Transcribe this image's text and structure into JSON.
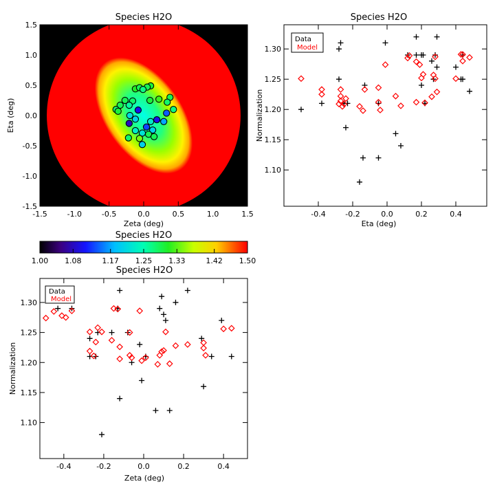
{
  "colorbar": {
    "title": "Species H2O",
    "range": [
      1.0,
      1.5
    ],
    "tick_labels": [
      "1.00",
      "1.08",
      "1.17",
      "1.25",
      "1.33",
      "1.42",
      "1.50"
    ],
    "tick_values": [
      1.0,
      1.08,
      1.17,
      1.25,
      1.33,
      1.42,
      1.5
    ]
  },
  "chart_data": [
    {
      "type": "heatmap",
      "title": "Species H2O",
      "xlabel": "Zeta (deg)",
      "ylabel": "Eta (deg)",
      "xlim": [
        -1.5,
        1.5
      ],
      "ylim": [
        -1.5,
        1.5
      ],
      "x_ticks": [
        -1.5,
        -1.0,
        -0.5,
        0.0,
        0.5,
        1.0,
        1.5
      ],
      "x_tick_labels": [
        "-1.5",
        "-1.0",
        "-0.5",
        "0.0",
        "0.5",
        "1.0",
        "1.5"
      ],
      "y_ticks": [
        -1.5,
        -1.0,
        -0.5,
        0.0,
        0.5,
        1.0,
        1.5
      ],
      "y_tick_labels": [
        "-1.5",
        "-1.0",
        "-0.5",
        "0.0",
        "0.5",
        "1.0",
        "1.5"
      ],
      "model": {
        "center": [
          0.0,
          0.0
        ],
        "semi_major": 0.95,
        "semi_minor": 0.55,
        "angle_deg": 55,
        "min": 1.2,
        "max": 1.5
      },
      "disk_radius": 1.4,
      "points": [
        {
          "x": 0.1,
          "y": 0.49,
          "v": 1.3
        },
        {
          "x": 0.05,
          "y": 0.47,
          "v": 1.29
        },
        {
          "x": -0.12,
          "y": 0.44,
          "v": 1.31
        },
        {
          "x": -0.06,
          "y": 0.46,
          "v": 1.29
        },
        {
          "x": -0.01,
          "y": 0.43,
          "v": 1.27
        },
        {
          "x": 0.38,
          "y": 0.3,
          "v": 1.29
        },
        {
          "x": 0.22,
          "y": 0.27,
          "v": 1.32
        },
        {
          "x": 0.34,
          "y": 0.22,
          "v": 1.28
        },
        {
          "x": -0.27,
          "y": 0.25,
          "v": 1.29
        },
        {
          "x": -0.16,
          "y": 0.24,
          "v": 1.28
        },
        {
          "x": 0.09,
          "y": 0.25,
          "v": 1.3
        },
        {
          "x": -0.34,
          "y": 0.17,
          "v": 1.29
        },
        {
          "x": -0.4,
          "y": 0.1,
          "v": 1.28
        },
        {
          "x": -0.21,
          "y": 0.17,
          "v": 1.26
        },
        {
          "x": -0.08,
          "y": 0.09,
          "v": 1.1
        },
        {
          "x": 0.43,
          "y": 0.1,
          "v": 1.27
        },
        {
          "x": -0.37,
          "y": 0.07,
          "v": 1.3
        },
        {
          "x": -0.2,
          "y": 0.0,
          "v": 1.21
        },
        {
          "x": 0.33,
          "y": 0.04,
          "v": 1.14
        },
        {
          "x": -0.12,
          "y": -0.06,
          "v": 1.2
        },
        {
          "x": 0.19,
          "y": -0.07,
          "v": 1.1
        },
        {
          "x": 0.29,
          "y": -0.1,
          "v": 1.17
        },
        {
          "x": 0.1,
          "y": -0.1,
          "v": 1.23
        },
        {
          "x": -0.21,
          "y": -0.13,
          "v": 1.08
        },
        {
          "x": 0.04,
          "y": -0.19,
          "v": 1.13
        },
        {
          "x": 0.13,
          "y": -0.24,
          "v": 1.2
        },
        {
          "x": -0.12,
          "y": -0.25,
          "v": 1.23
        },
        {
          "x": -0.02,
          "y": -0.29,
          "v": 1.22
        },
        {
          "x": 0.07,
          "y": -0.31,
          "v": 1.29
        },
        {
          "x": 0.15,
          "y": -0.35,
          "v": 1.29
        },
        {
          "x": -0.22,
          "y": -0.37,
          "v": 1.28
        },
        {
          "x": -0.06,
          "y": -0.38,
          "v": 1.34
        },
        {
          "x": -0.02,
          "y": -0.48,
          "v": 1.2
        }
      ]
    },
    {
      "type": "scatter",
      "title": "Species H2O",
      "xlabel": "Eta (deg)",
      "ylabel": "Normalization",
      "xlim": [
        -0.6,
        0.58
      ],
      "ylim": [
        1.04,
        1.34
      ],
      "x_ticks": [
        -0.4,
        -0.2,
        0.0,
        0.2,
        0.4
      ],
      "x_tick_labels": [
        "-0.4",
        "-0.2",
        "0.0",
        "0.2",
        "0.4"
      ],
      "y_ticks": [
        1.1,
        1.15,
        1.2,
        1.25,
        1.3
      ],
      "y_tick_labels": [
        "1.10",
        "1.15",
        "1.20",
        "1.25",
        "1.30"
      ],
      "legend": {
        "position": "top-left",
        "entries": [
          "Data",
          "Model"
        ]
      },
      "series": [
        {
          "name": "Data",
          "marker": "plus",
          "color": "#000000",
          "points": [
            [
              -0.5,
              1.2
            ],
            [
              -0.38,
              1.21
            ],
            [
              -0.28,
              1.3
            ],
            [
              -0.27,
              1.31
            ],
            [
              -0.28,
              1.25
            ],
            [
              -0.25,
              1.21
            ],
            [
              -0.23,
              1.21
            ],
            [
              -0.24,
              1.17
            ],
            [
              -0.16,
              1.08
            ],
            [
              -0.14,
              1.12
            ],
            [
              -0.13,
              1.24
            ],
            [
              -0.05,
              1.21
            ],
            [
              -0.05,
              1.12
            ],
            [
              -0.01,
              1.31
            ],
            [
              0.05,
              1.16
            ],
            [
              0.08,
              1.14
            ],
            [
              0.12,
              1.29
            ],
            [
              0.17,
              1.32
            ],
            [
              0.17,
              1.29
            ],
            [
              0.2,
              1.29
            ],
            [
              0.21,
              1.29
            ],
            [
              0.2,
              1.24
            ],
            [
              0.22,
              1.21
            ],
            [
              0.26,
              1.28
            ],
            [
              0.27,
              1.25
            ],
            [
              0.28,
              1.29
            ],
            [
              0.29,
              1.27
            ],
            [
              0.29,
              1.32
            ],
            [
              0.4,
              1.27
            ],
            [
              0.43,
              1.25
            ],
            [
              0.44,
              1.25
            ],
            [
              0.48,
              1.23
            ],
            [
              0.44,
              1.29
            ]
          ]
        },
        {
          "name": "Model",
          "marker": "diamond",
          "color": "#ff0000",
          "points": [
            [
              -0.5,
              1.251
            ],
            [
              -0.38,
              1.233
            ],
            [
              -0.38,
              1.225
            ],
            [
              -0.28,
              1.209
            ],
            [
              -0.27,
              1.214
            ],
            [
              -0.27,
              1.222
            ],
            [
              -0.26,
              1.205
            ],
            [
              -0.24,
              1.218
            ],
            [
              -0.25,
              1.209
            ],
            [
              -0.27,
              1.233
            ],
            [
              -0.16,
              1.205
            ],
            [
              -0.14,
              1.198
            ],
            [
              -0.13,
              1.233
            ],
            [
              -0.05,
              1.236
            ],
            [
              -0.05,
              1.212
            ],
            [
              -0.04,
              1.199
            ],
            [
              -0.01,
              1.274
            ],
            [
              0.05,
              1.222
            ],
            [
              0.08,
              1.206
            ],
            [
              0.12,
              1.285
            ],
            [
              0.13,
              1.289
            ],
            [
              0.17,
              1.279
            ],
            [
              0.17,
              1.212
            ],
            [
              0.19,
              1.274
            ],
            [
              0.2,
              1.252
            ],
            [
              0.21,
              1.258
            ],
            [
              0.22,
              1.211
            ],
            [
              0.26,
              1.221
            ],
            [
              0.27,
              1.257
            ],
            [
              0.28,
              1.287
            ],
            [
              0.28,
              1.251
            ],
            [
              0.29,
              1.229
            ],
            [
              0.4,
              1.251
            ],
            [
              0.43,
              1.291
            ],
            [
              0.44,
              1.291
            ],
            [
              0.44,
              1.28
            ],
            [
              0.48,
              1.286
            ]
          ]
        }
      ]
    },
    {
      "type": "scatter",
      "title": "Species H2O",
      "xlabel": "Zeta (deg)",
      "ylabel": "Normalization",
      "xlim": [
        -0.52,
        0.52
      ],
      "ylim": [
        1.04,
        1.34
      ],
      "x_ticks": [
        -0.4,
        -0.2,
        0.0,
        0.2,
        0.4
      ],
      "x_tick_labels": [
        "-0.4",
        "-0.2",
        "0.0",
        "0.2",
        "0.4"
      ],
      "y_ticks": [
        1.1,
        1.15,
        1.2,
        1.25,
        1.3
      ],
      "y_tick_labels": [
        "1.10",
        "1.15",
        "1.20",
        "1.25",
        "1.30"
      ],
      "legend": {
        "position": "top-left",
        "entries": [
          "Data",
          "Model"
        ]
      },
      "series": [
        {
          "name": "Data",
          "marker": "plus",
          "color": "#000000",
          "points": [
            [
              -0.43,
              1.29
            ],
            [
              -0.38,
              1.32
            ],
            [
              -0.36,
              1.29
            ],
            [
              -0.27,
              1.24
            ],
            [
              -0.27,
              1.21
            ],
            [
              -0.24,
              1.21
            ],
            [
              -0.23,
              1.25
            ],
            [
              -0.21,
              1.08
            ],
            [
              -0.16,
              1.25
            ],
            [
              -0.13,
              1.29
            ],
            [
              -0.12,
              1.32
            ],
            [
              -0.12,
              1.14
            ],
            [
              -0.08,
              1.25
            ],
            [
              -0.06,
              1.2
            ],
            [
              -0.02,
              1.23
            ],
            [
              -0.01,
              1.17
            ],
            [
              0.01,
              1.21
            ],
            [
              0.06,
              1.12
            ],
            [
              0.08,
              1.29
            ],
            [
              0.09,
              1.31
            ],
            [
              0.1,
              1.28
            ],
            [
              0.11,
              1.27
            ],
            [
              0.13,
              1.12
            ],
            [
              0.16,
              1.3
            ],
            [
              0.22,
              1.32
            ],
            [
              0.29,
              1.24
            ],
            [
              0.3,
              1.16
            ],
            [
              0.34,
              1.21
            ],
            [
              0.39,
              1.27
            ],
            [
              0.44,
              1.21
            ]
          ]
        },
        {
          "name": "Model",
          "marker": "diamond",
          "color": "#ff0000",
          "points": [
            [
              -0.49,
              1.274
            ],
            [
              -0.45,
              1.285
            ],
            [
              -0.41,
              1.278
            ],
            [
              -0.39,
              1.275
            ],
            [
              -0.36,
              1.286
            ],
            [
              -0.27,
              1.251
            ],
            [
              -0.27,
              1.219
            ],
            [
              -0.25,
              1.211
            ],
            [
              -0.24,
              1.234
            ],
            [
              -0.23,
              1.258
            ],
            [
              -0.21,
              1.251
            ],
            [
              -0.16,
              1.237
            ],
            [
              -0.15,
              1.29
            ],
            [
              -0.13,
              1.289
            ],
            [
              -0.12,
              1.226
            ],
            [
              -0.12,
              1.206
            ],
            [
              -0.07,
              1.212
            ],
            [
              -0.07,
              1.25
            ],
            [
              -0.06,
              1.208
            ],
            [
              -0.02,
              1.286
            ],
            [
              -0.01,
              1.203
            ],
            [
              0.01,
              1.208
            ],
            [
              0.07,
              1.197
            ],
            [
              0.08,
              1.212
            ],
            [
              0.09,
              1.218
            ],
            [
              0.11,
              1.251
            ],
            [
              0.1,
              1.22
            ],
            [
              0.13,
              1.198
            ],
            [
              0.16,
              1.228
            ],
            [
              0.22,
              1.23
            ],
            [
              0.3,
              1.233
            ],
            [
              0.3,
              1.224
            ],
            [
              0.31,
              1.212
            ],
            [
              0.4,
              1.256
            ],
            [
              0.44,
              1.257
            ]
          ]
        }
      ]
    }
  ]
}
